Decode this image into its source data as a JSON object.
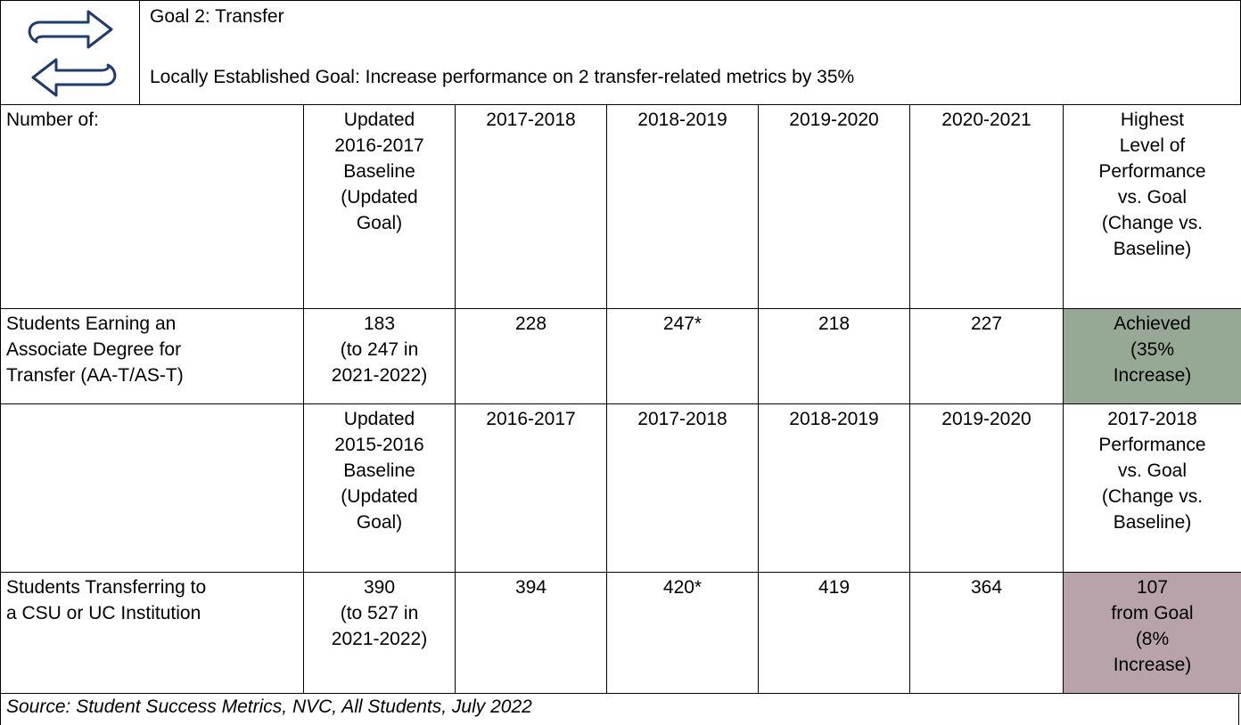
{
  "header": {
    "title": "Goal 2:  Transfer",
    "goal": "Locally Established Goal:  Increase performance on 2 transfer-related metrics by 35%"
  },
  "table": {
    "rows": [
      [
        [
          "Number of:"
        ],
        [
          "Updated",
          "2016-2017",
          "Baseline",
          "(Updated",
          "Goal)"
        ],
        [
          "2017-2018"
        ],
        [
          "2018-2019"
        ],
        [
          "2019-2020"
        ],
        [
          "2020-2021"
        ],
        [
          "Highest",
          "Level of",
          "Performance",
          "vs. Goal",
          "(Change vs.",
          "Baseline)"
        ]
      ],
      [
        [
          "Students Earning an",
          "Associate Degree for",
          "Transfer (AA-T/AS-T)"
        ],
        [
          "183",
          "(to 247 in",
          "2021-2022)"
        ],
        [
          "228"
        ],
        [
          "247*"
        ],
        [
          "218"
        ],
        [
          "227"
        ],
        [
          "Achieved",
          "(35%",
          "Increase)"
        ]
      ],
      [
        [],
        [
          "Updated",
          "2015-2016",
          "Baseline",
          "(Updated",
          "Goal)"
        ],
        [
          "2016-2017"
        ],
        [
          "2017-2018"
        ],
        [
          "2018-2019"
        ],
        [
          "2019-2020"
        ],
        [
          "2017-2018",
          "Performance",
          "vs. Goal",
          "(Change vs.",
          "Baseline)"
        ]
      ],
      [
        [
          "Students Transferring to",
          "a CSU or UC Institution"
        ],
        [
          "390",
          "(to 527 in",
          "2021-2022)"
        ],
        [
          "394"
        ],
        [
          "420*"
        ],
        [
          "419"
        ],
        [
          "364"
        ],
        [
          "107",
          "from Goal",
          "(8%",
          "Increase)"
        ]
      ]
    ]
  },
  "source": "Source: Student Success Metrics, NVC, All Students, July 2022"
}
